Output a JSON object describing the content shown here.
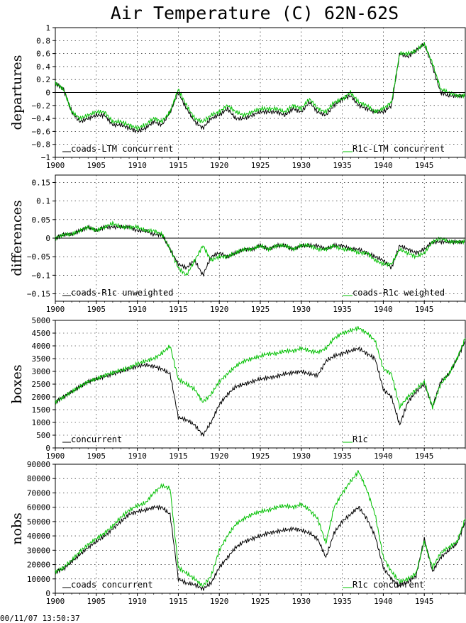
{
  "title": "Air Temperature (C) 62N-62S",
  "timestamp": "00/11/07 13:50:37",
  "colors": {
    "series_a": "#000000",
    "series_b": "#00c000",
    "grid": "#000000",
    "zero_line": "#000000"
  },
  "chart_data": [
    {
      "type": "line",
      "ylabel": "departures",
      "xlim": [
        1900,
        1950
      ],
      "x_ticks": [
        "1900",
        "1905",
        "1910",
        "1915",
        "1920",
        "1925",
        "1930",
        "1935",
        "1940",
        "1945"
      ],
      "ylim": [
        -1,
        1
      ],
      "y_ticks": [
        -1,
        -0.8,
        -0.6,
        -0.4,
        -0.2,
        0,
        0.2,
        0.4,
        0.6,
        0.8,
        1
      ],
      "y_tick_labels": [
        "−1",
        "−0.8",
        "−0.6",
        "−0.4",
        "−0.2",
        "0",
        "0.2",
        "0.4",
        "0.6",
        "0.8",
        "1"
      ],
      "zero_line": true,
      "grid": true,
      "series": [
        {
          "name": "coads-LTM concurrent",
          "color": "#000000",
          "x": [
            1900,
            1901,
            1902,
            1903,
            1904,
            1905,
            1906,
            1907,
            1908,
            1909,
            1910,
            1911,
            1912,
            1913,
            1914,
            1915,
            1916,
            1917,
            1918,
            1919,
            1920,
            1921,
            1922,
            1923,
            1924,
            1925,
            1926,
            1927,
            1928,
            1929,
            1930,
            1931,
            1932,
            1933,
            1934,
            1935,
            1936,
            1937,
            1938,
            1939,
            1940,
            1941,
            1942,
            1943,
            1944,
            1945,
            1946,
            1947,
            1948,
            1949,
            1950
          ],
          "y": [
            0.15,
            0.05,
            -0.3,
            -0.45,
            -0.4,
            -0.35,
            -0.35,
            -0.5,
            -0.5,
            -0.55,
            -0.6,
            -0.55,
            -0.45,
            -0.5,
            -0.3,
            0.0,
            -0.25,
            -0.45,
            -0.55,
            -0.4,
            -0.35,
            -0.25,
            -0.4,
            -0.4,
            -0.35,
            -0.3,
            -0.3,
            -0.3,
            -0.35,
            -0.25,
            -0.3,
            -0.15,
            -0.3,
            -0.35,
            -0.2,
            -0.1,
            -0.05,
            -0.2,
            -0.25,
            -0.3,
            -0.3,
            -0.2,
            0.6,
            0.55,
            0.65,
            0.75,
            0.4,
            0.0,
            -0.05,
            -0.05,
            -0.05
          ]
        },
        {
          "name": "R1c-LTM concurrent",
          "color": "#00c000",
          "x": [
            1900,
            1901,
            1902,
            1903,
            1904,
            1905,
            1906,
            1907,
            1908,
            1909,
            1910,
            1911,
            1912,
            1913,
            1914,
            1915,
            1916,
            1917,
            1918,
            1919,
            1920,
            1921,
            1922,
            1923,
            1924,
            1925,
            1926,
            1927,
            1928,
            1929,
            1930,
            1931,
            1932,
            1933,
            1934,
            1935,
            1936,
            1937,
            1938,
            1939,
            1940,
            1941,
            1942,
            1943,
            1944,
            1945,
            1946,
            1947,
            1948,
            1949,
            1950
          ],
          "y": [
            0.15,
            0.05,
            -0.3,
            -0.4,
            -0.35,
            -0.3,
            -0.3,
            -0.45,
            -0.45,
            -0.5,
            -0.55,
            -0.5,
            -0.4,
            -0.45,
            -0.3,
            0.05,
            -0.2,
            -0.4,
            -0.45,
            -0.35,
            -0.3,
            -0.2,
            -0.3,
            -0.35,
            -0.3,
            -0.25,
            -0.25,
            -0.25,
            -0.3,
            -0.2,
            -0.25,
            -0.1,
            -0.25,
            -0.3,
            -0.15,
            -0.1,
            0.0,
            -0.15,
            -0.2,
            -0.3,
            -0.25,
            -0.15,
            0.6,
            0.6,
            0.65,
            0.75,
            0.45,
            0.05,
            0.0,
            -0.05,
            -0.05
          ]
        }
      ]
    },
    {
      "type": "line",
      "ylabel": "differences",
      "xlim": [
        1900,
        1950
      ],
      "x_ticks": [
        "1900",
        "1905",
        "1910",
        "1915",
        "1920",
        "1925",
        "1930",
        "1935",
        "1940",
        "1945"
      ],
      "ylim": [
        -0.17,
        0.17
      ],
      "y_ticks": [
        -0.15,
        -0.1,
        -0.05,
        0,
        0.05,
        0.1,
        0.15
      ],
      "y_tick_labels": [
        "−0.15",
        "−0.1",
        "−0.05",
        "0",
        "0.05",
        "0.1",
        "0.15"
      ],
      "zero_line": true,
      "grid": true,
      "series": [
        {
          "name": "coads-R1c unweighted",
          "color": "#000000",
          "x": [
            1900,
            1901,
            1902,
            1903,
            1904,
            1905,
            1906,
            1907,
            1908,
            1909,
            1910,
            1911,
            1912,
            1913,
            1914,
            1915,
            1916,
            1917,
            1918,
            1919,
            1920,
            1921,
            1922,
            1923,
            1924,
            1925,
            1926,
            1927,
            1928,
            1929,
            1930,
            1931,
            1932,
            1933,
            1934,
            1935,
            1936,
            1937,
            1938,
            1939,
            1940,
            1941,
            1942,
            1943,
            1944,
            1945,
            1946,
            1947,
            1948,
            1949,
            1950
          ],
          "y": [
            0.0,
            0.01,
            0.01,
            0.02,
            0.03,
            0.02,
            0.03,
            0.03,
            0.03,
            0.03,
            0.02,
            0.02,
            0.01,
            0.01,
            -0.03,
            -0.07,
            -0.08,
            -0.06,
            -0.1,
            -0.05,
            -0.04,
            -0.05,
            -0.04,
            -0.03,
            -0.03,
            -0.02,
            -0.03,
            -0.02,
            -0.02,
            -0.03,
            -0.02,
            -0.02,
            -0.02,
            -0.03,
            -0.02,
            -0.02,
            -0.03,
            -0.03,
            -0.04,
            -0.05,
            -0.06,
            -0.08,
            -0.02,
            -0.03,
            -0.04,
            -0.03,
            -0.01,
            -0.01,
            -0.01,
            -0.01,
            -0.01
          ]
        },
        {
          "name": "coads-R1c weighted",
          "color": "#00c000",
          "x": [
            1900,
            1901,
            1902,
            1903,
            1904,
            1905,
            1906,
            1907,
            1908,
            1909,
            1910,
            1911,
            1912,
            1913,
            1914,
            1915,
            1916,
            1917,
            1918,
            1919,
            1920,
            1921,
            1922,
            1923,
            1924,
            1925,
            1926,
            1927,
            1928,
            1929,
            1930,
            1931,
            1932,
            1933,
            1934,
            1935,
            1936,
            1937,
            1938,
            1939,
            1940,
            1941,
            1942,
            1943,
            1944,
            1945,
            1946,
            1947,
            1948,
            1949,
            1950
          ],
          "y": [
            0.0,
            0.01,
            0.01,
            0.02,
            0.03,
            0.02,
            0.03,
            0.04,
            0.03,
            0.03,
            0.03,
            0.02,
            0.02,
            0.01,
            -0.03,
            -0.08,
            -0.1,
            -0.06,
            -0.02,
            -0.06,
            -0.05,
            -0.05,
            -0.04,
            -0.03,
            -0.03,
            -0.02,
            -0.03,
            -0.02,
            -0.02,
            -0.03,
            -0.02,
            -0.02,
            -0.03,
            -0.03,
            -0.02,
            -0.03,
            -0.03,
            -0.04,
            -0.04,
            -0.06,
            -0.07,
            -0.07,
            -0.03,
            -0.04,
            -0.05,
            -0.04,
            -0.01,
            0.0,
            -0.01,
            -0.01,
            -0.01
          ]
        }
      ]
    },
    {
      "type": "line",
      "ylabel": "boxes",
      "xlim": [
        1900,
        1950
      ],
      "x_ticks": [
        "1900",
        "1905",
        "1910",
        "1915",
        "1920",
        "1925",
        "1930",
        "1935",
        "1940",
        "1945"
      ],
      "ylim": [
        0,
        5000
      ],
      "y_ticks": [
        0,
        500,
        1000,
        1500,
        2000,
        2500,
        3000,
        3500,
        4000,
        4500,
        5000
      ],
      "y_tick_labels": [
        "0",
        "500",
        "1000",
        "1500",
        "2000",
        "2500",
        "3000",
        "3500",
        "4000",
        "4500",
        "5000"
      ],
      "zero_line": false,
      "grid": true,
      "series": [
        {
          "name": "concurrent",
          "color": "#000000",
          "x": [
            1900,
            1901,
            1902,
            1903,
            1904,
            1905,
            1906,
            1907,
            1908,
            1909,
            1910,
            1911,
            1912,
            1913,
            1914,
            1915,
            1916,
            1917,
            1918,
            1919,
            1920,
            1921,
            1922,
            1923,
            1924,
            1925,
            1926,
            1927,
            1928,
            1929,
            1930,
            1931,
            1932,
            1933,
            1934,
            1935,
            1936,
            1937,
            1938,
            1939,
            1940,
            1941,
            1942,
            1943,
            1944,
            1945,
            1946,
            1947,
            1948,
            1949,
            1950
          ],
          "y": [
            1800,
            2000,
            2200,
            2400,
            2600,
            2700,
            2800,
            2900,
            3000,
            3100,
            3200,
            3250,
            3200,
            3100,
            2900,
            1200,
            1100,
            900,
            500,
            1000,
            1700,
            2100,
            2400,
            2500,
            2600,
            2700,
            2750,
            2800,
            2900,
            2950,
            3000,
            2900,
            2850,
            3400,
            3600,
            3700,
            3800,
            3900,
            3700,
            3500,
            2300,
            2000,
            900,
            1800,
            2200,
            2500,
            1600,
            2600,
            2900,
            3500,
            4200
          ]
        },
        {
          "name": "R1c",
          "color": "#00c000",
          "x": [
            1900,
            1901,
            1902,
            1903,
            1904,
            1905,
            1906,
            1907,
            1908,
            1909,
            1910,
            1911,
            1912,
            1913,
            1914,
            1915,
            1916,
            1917,
            1918,
            1919,
            1920,
            1921,
            1922,
            1923,
            1924,
            1925,
            1926,
            1927,
            1928,
            1929,
            1930,
            1931,
            1932,
            1933,
            1934,
            1935,
            1936,
            1937,
            1938,
            1939,
            1940,
            1941,
            1942,
            1943,
            1944,
            1945,
            1946,
            1947,
            1948,
            1949,
            1950
          ],
          "y": [
            1800,
            2000,
            2200,
            2400,
            2600,
            2700,
            2850,
            2950,
            3050,
            3150,
            3300,
            3400,
            3500,
            3700,
            4000,
            2700,
            2500,
            2300,
            1800,
            2100,
            2600,
            2900,
            3200,
            3400,
            3500,
            3600,
            3700,
            3700,
            3800,
            3800,
            3900,
            3800,
            3750,
            3900,
            4300,
            4500,
            4600,
            4700,
            4500,
            4200,
            3100,
            2900,
            1600,
            2000,
            2300,
            2600,
            1600,
            2500,
            2900,
            3500,
            4300
          ]
        }
      ]
    },
    {
      "type": "line",
      "ylabel": "nobs",
      "xlim": [
        1900,
        1950
      ],
      "x_ticks": [
        "1900",
        "1905",
        "1910",
        "1915",
        "1920",
        "1925",
        "1930",
        "1935",
        "1940",
        "1945"
      ],
      "ylim": [
        0,
        90000
      ],
      "y_ticks": [
        0,
        10000,
        20000,
        30000,
        40000,
        50000,
        60000,
        70000,
        80000,
        90000
      ],
      "y_tick_labels": [
        "0",
        "10000",
        "20000",
        "30000",
        "40000",
        "50000",
        "60000",
        "70000",
        "80000",
        "90000"
      ],
      "zero_line": false,
      "grid": true,
      "series": [
        {
          "name": "coads concurrent",
          "color": "#000000",
          "x": [
            1900,
            1901,
            1902,
            1903,
            1904,
            1905,
            1906,
            1907,
            1908,
            1909,
            1910,
            1911,
            1912,
            1913,
            1914,
            1915,
            1916,
            1917,
            1918,
            1919,
            1920,
            1921,
            1922,
            1923,
            1924,
            1925,
            1926,
            1927,
            1928,
            1929,
            1930,
            1931,
            1932,
            1933,
            1934,
            1935,
            1936,
            1937,
            1938,
            1939,
            1940,
            1941,
            1942,
            1943,
            1944,
            1945,
            1946,
            1947,
            1948,
            1949,
            1950
          ],
          "y": [
            15000,
            17000,
            22000,
            27000,
            32000,
            36000,
            40000,
            45000,
            50000,
            55000,
            57000,
            58000,
            60000,
            60000,
            55000,
            10000,
            7000,
            6000,
            3000,
            7000,
            18000,
            25000,
            32000,
            36000,
            38000,
            40000,
            42000,
            43000,
            44000,
            45000,
            44000,
            42000,
            38000,
            25000,
            42000,
            50000,
            55000,
            60000,
            52000,
            40000,
            18000,
            10000,
            5000,
            8000,
            12000,
            38000,
            15000,
            25000,
            30000,
            35000,
            50000
          ]
        },
        {
          "name": "R1c concurrent",
          "color": "#00c000",
          "x": [
            1900,
            1901,
            1902,
            1903,
            1904,
            1905,
            1906,
            1907,
            1908,
            1909,
            1910,
            1911,
            1912,
            1913,
            1914,
            1915,
            1916,
            1917,
            1918,
            1919,
            1920,
            1921,
            1922,
            1923,
            1924,
            1925,
            1926,
            1927,
            1928,
            1929,
            1930,
            1931,
            1932,
            1933,
            1934,
            1935,
            1936,
            1937,
            1938,
            1939,
            1940,
            1941,
            1942,
            1943,
            1944,
            1945,
            1946,
            1947,
            1948,
            1949,
            1950
          ],
          "y": [
            15000,
            18000,
            23000,
            29000,
            34000,
            38000,
            42000,
            47000,
            53000,
            58000,
            61000,
            63000,
            70000,
            75000,
            73000,
            18000,
            14000,
            10000,
            5000,
            12000,
            30000,
            40000,
            48000,
            52000,
            55000,
            57000,
            58000,
            60000,
            61000,
            60000,
            62000,
            58000,
            52000,
            35000,
            60000,
            70000,
            78000,
            85000,
            72000,
            55000,
            25000,
            15000,
            8000,
            10000,
            14000,
            36000,
            18000,
            28000,
            32000,
            36000,
            52000
          ]
        }
      ]
    }
  ]
}
